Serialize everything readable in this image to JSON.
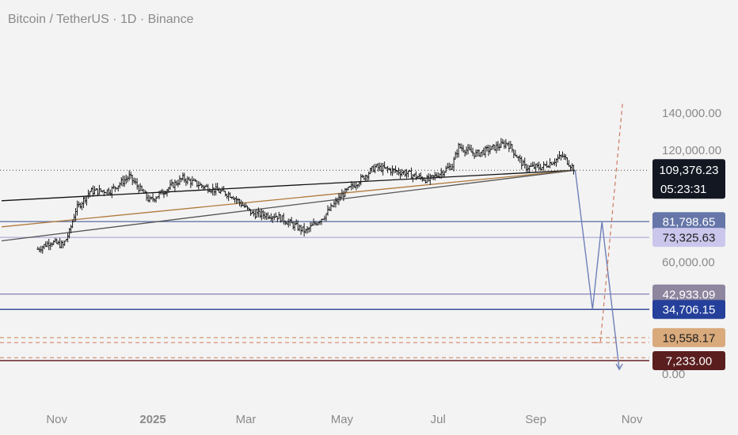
{
  "header": {
    "symbol_title": "Bitcoin / TetherUS · 1D · Binance"
  },
  "chart_data": {
    "type": "candlestick",
    "x_ticks": [
      "Nov",
      "2025",
      "Mar",
      "May",
      "Jul",
      "Sep",
      "Nov"
    ],
    "y_ticks": [
      "140,000.00",
      "120,000.00",
      "60,000.00",
      "0.00"
    ],
    "ylim": [
      0,
      145000
    ],
    "grid": false,
    "current_price": {
      "value": 109376.23,
      "label": "109,376.23",
      "countdown": "05:23:31",
      "color": "#131722"
    },
    "levels": [
      {
        "value": 81798.65,
        "label": "81,798.65",
        "line_color": "#6676a8",
        "tag_color": "#6676a8",
        "text_color": "#ffffff",
        "style": "solid"
      },
      {
        "value": 73325.63,
        "label": "73,325.63",
        "line_color": "#b6b4dd",
        "tag_color": "#cbc6ec",
        "text_color": "#1e1e1e",
        "style": "solid"
      },
      {
        "value": 42933.09,
        "label": "42,933.09",
        "line_color": "#8d8ab8",
        "tag_color": "#8e869f",
        "text_color": "#ffffff",
        "style": "solid"
      },
      {
        "value": 34706.15,
        "label": "34,706.15",
        "line_color": "#2a3f8f",
        "tag_color": "#24409a",
        "text_color": "#ffffff",
        "style": "solid"
      },
      {
        "value": 19558.17,
        "label": "19,558.17",
        "line_color": "#cf9a6f",
        "tag_color": "#d9aa7c",
        "text_color": "#1e1e1e",
        "style": "dashed"
      },
      {
        "value": 7233.0,
        "label": "7,233.00",
        "line_color": "#5a1214",
        "tag_color": "#5a1e1e",
        "text_color": "#ffffff",
        "style": "solid"
      }
    ],
    "extra_dashed_levels": [
      {
        "value": 16900,
        "color": "#cf7a5f"
      },
      {
        "value": 8800,
        "color": "#cf7a5f"
      }
    ],
    "series_close": [
      {
        "date": "2024-10-20",
        "value": 67000
      },
      {
        "date": "2024-10-28",
        "value": 71000
      },
      {
        "date": "2024-11-05",
        "value": 69000
      },
      {
        "date": "2024-11-09",
        "value": 76000
      },
      {
        "date": "2024-11-13",
        "value": 88000
      },
      {
        "date": "2024-11-22",
        "value": 98000
      },
      {
        "date": "2024-12-05",
        "value": 98500
      },
      {
        "date": "2024-12-17",
        "value": 106000
      },
      {
        "date": "2024-12-30",
        "value": 93000
      },
      {
        "date": "2025-01-20",
        "value": 105000
      },
      {
        "date": "2025-02-01",
        "value": 101000
      },
      {
        "date": "2025-02-20",
        "value": 96000
      },
      {
        "date": "2025-03-05",
        "value": 86000
      },
      {
        "date": "2025-03-20",
        "value": 85000
      },
      {
        "date": "2025-04-08",
        "value": 76500
      },
      {
        "date": "2025-04-20",
        "value": 85000
      },
      {
        "date": "2025-05-01",
        "value": 96000
      },
      {
        "date": "2025-05-22",
        "value": 111000
      },
      {
        "date": "2025-06-10",
        "value": 108000
      },
      {
        "date": "2025-06-25",
        "value": 104000
      },
      {
        "date": "2025-07-10",
        "value": 112000
      },
      {
        "date": "2025-07-14",
        "value": 122000
      },
      {
        "date": "2025-07-25",
        "value": 118000
      },
      {
        "date": "2025-08-14",
        "value": 124000
      },
      {
        "date": "2025-08-25",
        "value": 111000
      },
      {
        "date": "2025-09-05",
        "value": 111000
      },
      {
        "date": "2025-09-18",
        "value": 117000
      },
      {
        "date": "2025-09-26",
        "value": 109376
      }
    ],
    "trendlines": [
      {
        "color": "#111111",
        "from": {
          "date": "2024-09-27",
          "value": 93000
        },
        "to": {
          "date": "2025-09-26",
          "value": 109376
        }
      },
      {
        "color": "#b07a3c",
        "from": {
          "date": "2024-09-27",
          "value": 79000
        },
        "to": {
          "date": "2025-09-26",
          "value": 109376
        }
      },
      {
        "color": "#555555",
        "from": {
          "date": "2024-09-27",
          "value": 71500
        },
        "to": {
          "date": "2025-09-26",
          "value": 109376
        }
      }
    ],
    "projection_blue": [
      {
        "date": "2025-09-26",
        "value": 109376
      },
      {
        "date": "2025-10-07",
        "value": 34706
      },
      {
        "date": "2025-10-13",
        "value": 81798
      },
      {
        "date": "2025-10-24",
        "value": 2500
      }
    ],
    "projection_orange": [
      {
        "date": "2025-10-08",
        "value": 16900
      },
      {
        "date": "2025-10-12",
        "value": 16900
      },
      {
        "date": "2025-10-26",
        "value": 145000
      }
    ]
  }
}
